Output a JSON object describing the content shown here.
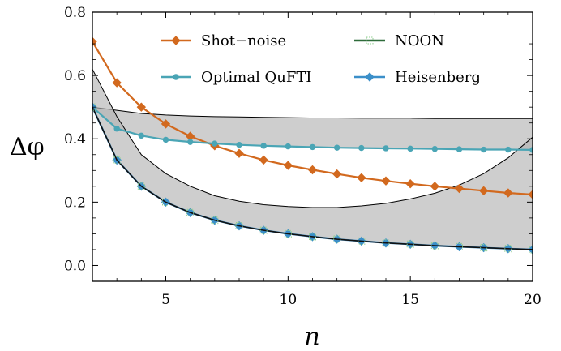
{
  "chart_data": {
    "type": "line",
    "xlabel": "n",
    "ylabel": "Δφ",
    "xlim": [
      2,
      20
    ],
    "ylim": [
      -0.05,
      0.8
    ],
    "xticks": [
      5,
      10,
      15,
      20
    ],
    "yticks": [
      0.0,
      0.2,
      0.4,
      0.6,
      0.8
    ],
    "xtick_labels": [
      "5",
      "10",
      "15",
      "20"
    ],
    "ytick_labels": [
      "0.0",
      "0.2",
      "0.4",
      "0.6",
      "0.8"
    ],
    "grid": false,
    "legend_position": "top-center",
    "x": [
      2,
      3,
      4,
      5,
      6,
      7,
      8,
      9,
      10,
      11,
      12,
      13,
      14,
      15,
      16,
      17,
      18,
      19,
      20
    ],
    "series": [
      {
        "name": "Shot−noise",
        "color": "#d2691e",
        "marker": "diamond",
        "values": [
          0.707,
          0.577,
          0.5,
          0.447,
          0.408,
          0.378,
          0.354,
          0.333,
          0.316,
          0.302,
          0.289,
          0.277,
          0.267,
          0.258,
          0.25,
          0.243,
          0.236,
          0.229,
          0.224
        ]
      },
      {
        "name": "Optimal QuFTI",
        "color": "#4aa5b5",
        "marker": "circle",
        "values": [
          0.5,
          0.432,
          0.41,
          0.397,
          0.39,
          0.385,
          0.381,
          0.378,
          0.376,
          0.374,
          0.372,
          0.371,
          0.37,
          0.369,
          0.368,
          0.367,
          0.366,
          0.366,
          0.365
        ]
      },
      {
        "name": "NOON",
        "color": "#2e6b3a",
        "marker": "square",
        "values": [
          0.5,
          0.333,
          0.25,
          0.2,
          0.167,
          0.143,
          0.125,
          0.111,
          0.1,
          0.091,
          0.083,
          0.077,
          0.071,
          0.067,
          0.0625,
          0.059,
          0.056,
          0.053,
          0.05
        ]
      },
      {
        "name": "Heisenberg",
        "color": "#3b8fc9",
        "marker": "diamond",
        "values": [
          0.5,
          0.333,
          0.25,
          0.2,
          0.167,
          0.143,
          0.125,
          0.111,
          0.1,
          0.091,
          0.083,
          0.077,
          0.071,
          0.067,
          0.0625,
          0.059,
          0.056,
          0.053,
          0.05
        ]
      }
    ],
    "bands": [
      {
        "upper": [
          0.5,
          0.49,
          0.48,
          0.475,
          0.472,
          0.47,
          0.469,
          0.468,
          0.467,
          0.466,
          0.466,
          0.465,
          0.465,
          0.465,
          0.464,
          0.464,
          0.464,
          0.464,
          0.464
        ],
        "lower": [
          0.5,
          0.432,
          0.41,
          0.397,
          0.39,
          0.385,
          0.381,
          0.378,
          0.376,
          0.374,
          0.372,
          0.371,
          0.37,
          0.369,
          0.368,
          0.367,
          0.366,
          0.366,
          0.365
        ]
      },
      {
        "upper": [
          0.62,
          0.47,
          0.35,
          0.29,
          0.25,
          0.22,
          0.203,
          0.192,
          0.186,
          0.183,
          0.183,
          0.188,
          0.196,
          0.21,
          0.228,
          0.254,
          0.29,
          0.34,
          0.405
        ],
        "lower": [
          0.5,
          0.333,
          0.25,
          0.2,
          0.167,
          0.143,
          0.125,
          0.111,
          0.1,
          0.091,
          0.083,
          0.077,
          0.071,
          0.067,
          0.0625,
          0.059,
          0.056,
          0.053,
          0.05
        ]
      }
    ]
  }
}
